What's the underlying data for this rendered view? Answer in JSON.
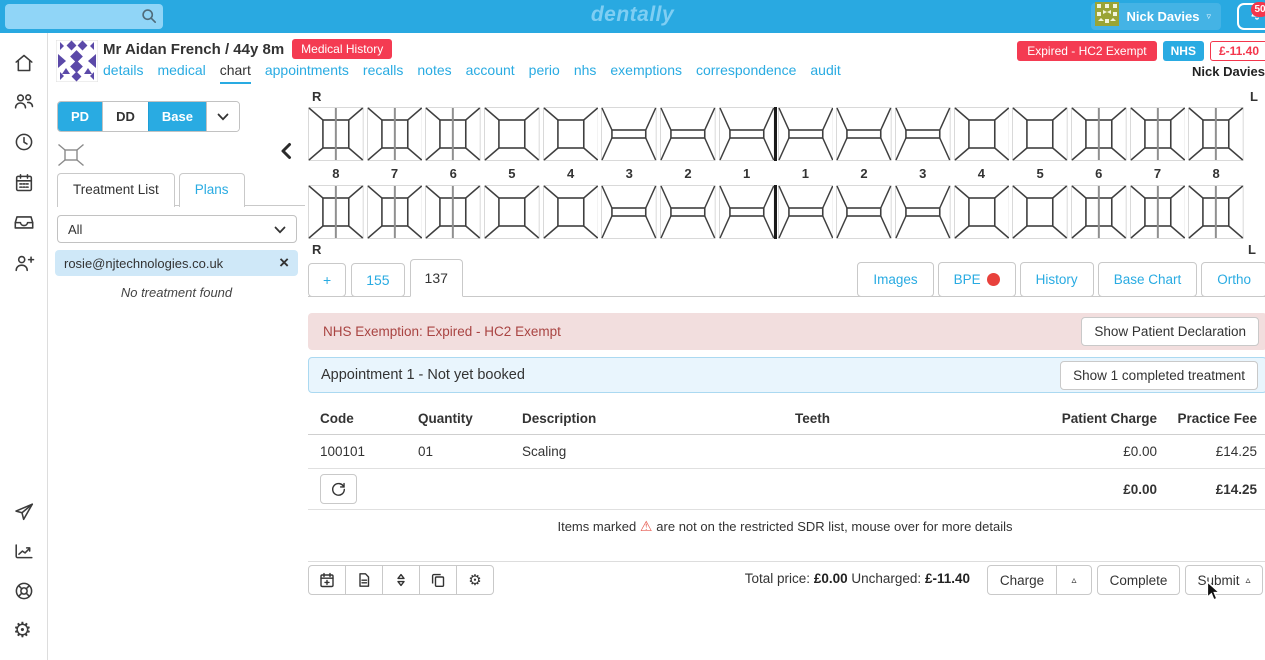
{
  "topbar": {
    "logo": "dentally",
    "search_value": "",
    "user": {
      "name": "Nick Davies",
      "caret": "▿"
    },
    "notification_count": "50"
  },
  "sidebar": {
    "icons": [
      "home-icon",
      "patients-icon",
      "recent-icon",
      "calendar-icon",
      "inbox-icon",
      "add-patient-icon",
      "send-icon",
      "reports-icon",
      "support-icon",
      "settings-icon"
    ]
  },
  "patient_header": {
    "name": "Mr Aidan French / 44y 8m",
    "medical_history_badge": "Medical History",
    "tabs": [
      "details",
      "medical",
      "chart",
      "appointments",
      "recalls",
      "notes",
      "account",
      "perio",
      "nhs",
      "exemptions",
      "correspondence",
      "audit"
    ],
    "active_tab": "chart",
    "exemption_badge": "Expired - HC2 Exempt",
    "nhs_badge": "NHS",
    "balance_badge": "£-11.40",
    "practitioner": "Nick Davies"
  },
  "left_panel": {
    "chart_modes": [
      {
        "label": "PD",
        "active": true
      },
      {
        "label": "DD",
        "active": false
      },
      {
        "label": "Base",
        "active": true
      }
    ],
    "tabs": [
      {
        "label": "Treatment List",
        "active": true
      },
      {
        "label": "Plans",
        "active": false
      }
    ],
    "filter_selected": "All",
    "assistant_email": "rosie@njtechnologies.co.uk",
    "empty_message": "No treatment found"
  },
  "dental_chart": {
    "corner_labels": {
      "top_left": "R",
      "top_right": "L",
      "bottom_left": "R",
      "bottom_right": "L"
    },
    "numbers": [
      "8",
      "7",
      "6",
      "5",
      "4",
      "3",
      "2",
      "1",
      "1",
      "2",
      "3",
      "4",
      "5",
      "6",
      "7",
      "8"
    ],
    "tooth_types": [
      "molar",
      "molar",
      "molar",
      "premolar",
      "premolar",
      "anterior",
      "anterior",
      "anterior",
      "anterior",
      "anterior",
      "anterior",
      "premolar",
      "premolar",
      "molar",
      "molar",
      "molar"
    ]
  },
  "chart_tabs": {
    "tabs": [
      "+",
      "155",
      "137"
    ],
    "active": "137"
  },
  "chart_actions": [
    {
      "label": "Images",
      "indicator": false
    },
    {
      "label": "BPE",
      "indicator": true
    },
    {
      "label": "History",
      "indicator": false
    },
    {
      "label": "Base Chart",
      "indicator": false
    },
    {
      "label": "Ortho",
      "indicator": false
    }
  ],
  "exemption_banner": {
    "message": "NHS Exemption: Expired - HC2 Exempt",
    "button_label": "Show Patient Declaration"
  },
  "appointment_banner": {
    "title": "Appointment 1 - Not yet booked",
    "button_label": "Show 1 completed treatment"
  },
  "treatment_table": {
    "headers": [
      "Code",
      "Quantity",
      "Description",
      "Teeth",
      "Patient Charge",
      "Practice Fee"
    ],
    "rows": [
      {
        "code": "100101",
        "quantity": "01",
        "description": "Scaling",
        "teeth": "",
        "patient_charge": "£0.00",
        "practice_fee": "£14.25"
      }
    ],
    "totals": {
      "patient_charge": "£0.00",
      "practice_fee": "£14.25"
    }
  },
  "sdr_note": {
    "before_icon": "Items marked",
    "after_icon": "are not on the restricted SDR list, mouse over for more details"
  },
  "footer": {
    "total_price_label": "Total price:",
    "total_price": "£0.00",
    "uncharged_label": "Uncharged:",
    "uncharged": "£-11.40",
    "charge_button": "Charge",
    "complete_button": "Complete",
    "submit_button": "Submit"
  },
  "colors": {
    "brand_blue": "#29a9e1",
    "link_blue": "#29abe2",
    "badge_red": "#f43b52",
    "danger_text": "#a94442",
    "danger_bg": "#f2dede",
    "info_bg": "#e9f5fd",
    "bpe_dot": "#e8413c"
  }
}
